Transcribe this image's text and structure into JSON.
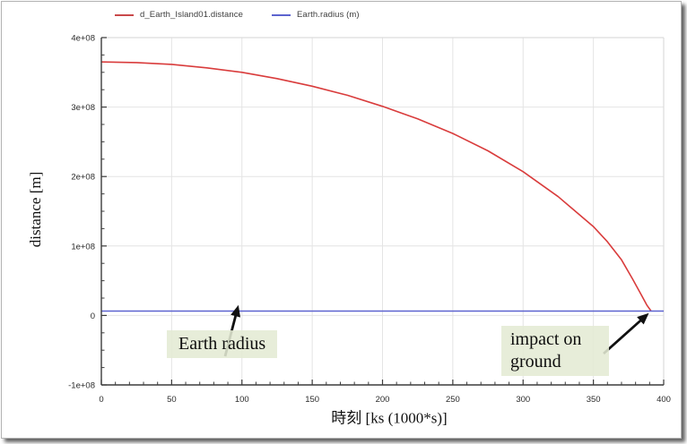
{
  "legend": {
    "items": [
      {
        "label": "d_Earth_Island01.distance",
        "color": "#c9484a"
      },
      {
        "label": "Earth.radius (m)",
        "color": "#5c63cf"
      }
    ]
  },
  "axes": {
    "ylabel": "distance [m]",
    "xlabel": "時刻 [ks (1000*s)]"
  },
  "annotations": {
    "earth_radius": {
      "text": "Earth radius"
    },
    "impact": {
      "text": "impact on ground"
    }
  },
  "colors": {
    "grid": "#e4e4e4",
    "spine_dark": "#3c3c3c",
    "spine_light": "#dcdcdc",
    "tick_label": "#2b2b2b",
    "arrow": "#111111",
    "curve_red": "#d93c3c",
    "line_blue": "#5c63cf",
    "annotation_bg": "#e4ebd4"
  },
  "chart_data": {
    "type": "line",
    "title": "",
    "xlabel": "時刻 [ks (1000*s)]",
    "ylabel": "distance [m]",
    "xlim": [
      0,
      400
    ],
    "ylim": [
      -100000000.0,
      400000000.0
    ],
    "x_ticks": [
      0,
      50,
      100,
      150,
      200,
      250,
      300,
      350,
      400
    ],
    "y_ticks": [
      {
        "value": -100000000.0,
        "label": "-1e+08"
      },
      {
        "value": 0,
        "label": "0"
      },
      {
        "value": 100000000.0,
        "label": "1e+08"
      },
      {
        "value": 200000000.0,
        "label": "2e+08"
      },
      {
        "value": 300000000.0,
        "label": "3e+08"
      },
      {
        "value": 400000000.0,
        "label": "4e+08"
      }
    ],
    "x_minor_step": 10,
    "y_minor_step": 25000000.0,
    "grid": true,
    "legend_position": "top",
    "series": [
      {
        "name": "d_Earth_Island01.distance",
        "color": "#d93c3c",
        "x": [
          0,
          25,
          50,
          75,
          100,
          125,
          150,
          175,
          200,
          225,
          250,
          275,
          300,
          325,
          350,
          360,
          370,
          378,
          384,
          388,
          391
        ],
        "y": [
          365000000.0,
          364000000.0,
          361500000.0,
          356500000.0,
          350000000.0,
          341000000.0,
          330000000.0,
          317000000.0,
          301000000.0,
          283000000.0,
          262000000.0,
          237000000.0,
          207000000.0,
          171000000.0,
          128000000.0,
          106000000.0,
          80000000.0,
          52000000.0,
          30000000.0,
          15000000.0,
          6400000.0
        ]
      },
      {
        "name": "Earth.radius (m)",
        "color": "#5c63cf",
        "x": [
          0,
          400
        ],
        "y": [
          6370000.0,
          6370000.0
        ]
      }
    ],
    "annotations": [
      {
        "text": "Earth radius",
        "points_to": "Earth.radius constant line (~6.4e6 m) near t=96 ks"
      },
      {
        "text": "impact on ground",
        "points_to": "curve reaching Earth radius at ~t=391 ks"
      }
    ]
  }
}
